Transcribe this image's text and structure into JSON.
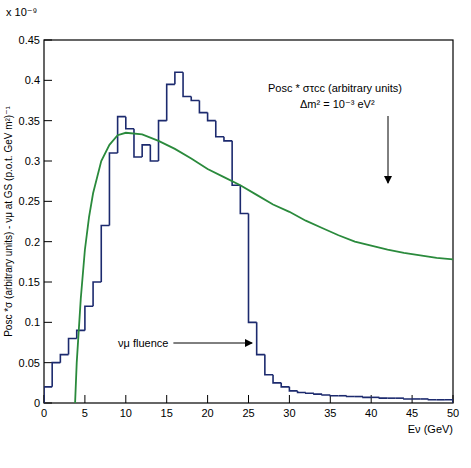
{
  "chart_data": {
    "type": "histogram",
    "multiplier_label": "x 10⁻⁹",
    "x_label": "Eν (GeV)",
    "y_label": "Posc *σ (arbitrary units) - νμ at GS (p.o.t. GeV m²)⁻¹",
    "xlim": [
      0,
      50
    ],
    "xticks": [
      0,
      5,
      10,
      15,
      20,
      25,
      30,
      35,
      40,
      45,
      50
    ],
    "ylim": [
      0,
      0.45
    ],
    "yticks": [
      0,
      0.05,
      0.1,
      0.15,
      0.2,
      0.25,
      0.3,
      0.35,
      0.4,
      0.45
    ],
    "bins": [
      0,
      1,
      2,
      3,
      4,
      5,
      6,
      7,
      8,
      9,
      10,
      11,
      12,
      13,
      14,
      15,
      16,
      17,
      18,
      19,
      20,
      21,
      22,
      23,
      24,
      25,
      26,
      27,
      28,
      29,
      30,
      31,
      32,
      33,
      34,
      35,
      36,
      37,
      38,
      39,
      40,
      41,
      42,
      43,
      44,
      45,
      46,
      47,
      48,
      49,
      50
    ],
    "series": [
      {
        "type": "histogram",
        "color": "#1c2a6e",
        "values": [
          0.02,
          0.05,
          0.06,
          0.08,
          0.09,
          0.12,
          0.15,
          0.22,
          0.31,
          0.355,
          0.34,
          0.305,
          0.32,
          0.3,
          0.35,
          0.395,
          0.41,
          0.38,
          0.375,
          0.36,
          0.35,
          0.33,
          0.325,
          0.27,
          0.235,
          0.1,
          0.06,
          0.035,
          0.025,
          0.02,
          0.015,
          0.013,
          0.012,
          0.011,
          0.01,
          0.009,
          0.009,
          0.008,
          0.008,
          0.007,
          0.007,
          0.006,
          0.006,
          0.006,
          0.005,
          0.005,
          0.005,
          0.004,
          0.004,
          0.004
        ]
      },
      {
        "type": "line",
        "color": "#2a8a3c",
        "x": [
          3.8,
          4,
          4.5,
          5,
          5.5,
          6,
          7,
          8,
          9,
          10,
          12,
          14,
          16,
          18,
          20,
          22,
          24,
          26,
          28,
          30,
          32,
          34,
          36,
          38,
          40,
          42,
          44,
          46,
          48,
          50
        ],
        "values": [
          0,
          0.05,
          0.13,
          0.19,
          0.23,
          0.26,
          0.3,
          0.32,
          0.332,
          0.335,
          0.333,
          0.325,
          0.315,
          0.303,
          0.29,
          0.28,
          0.27,
          0.258,
          0.246,
          0.237,
          0.226,
          0.217,
          0.208,
          0.2,
          0.195,
          0.19,
          0.186,
          0.183,
          0.18,
          0.178
        ]
      }
    ],
    "annotations": [
      {
        "text": "Posc * στcc (arbitrary units)"
      },
      {
        "text": "Δm² = 10⁻³ eV²"
      },
      {
        "text": "νμ fluence"
      }
    ]
  }
}
